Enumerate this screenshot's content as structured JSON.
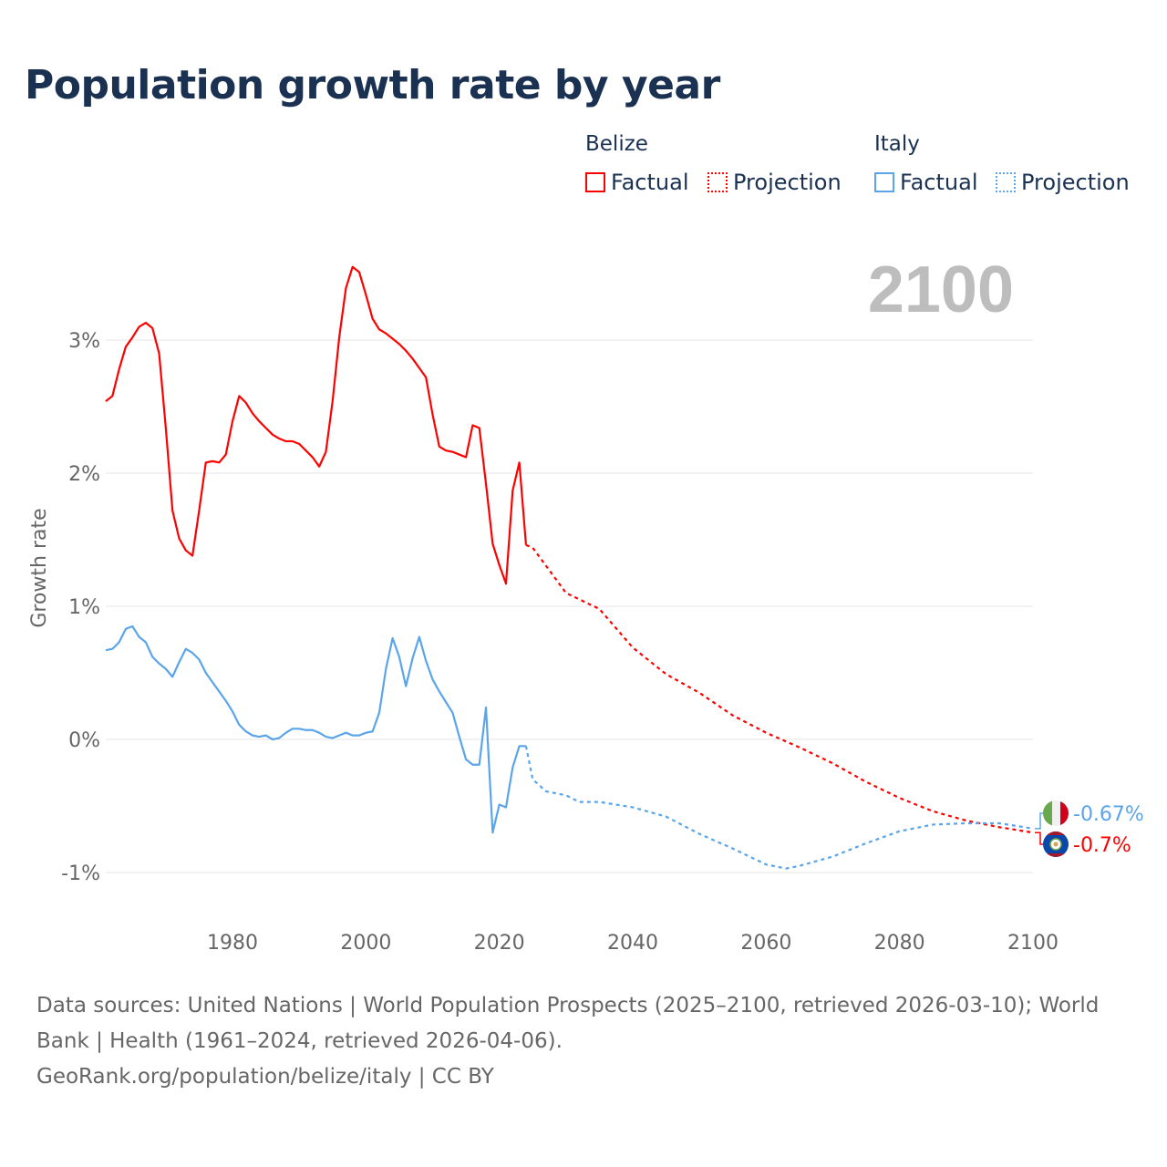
{
  "title": "Population growth rate by year",
  "legend": {
    "groups": [
      {
        "name": "Belize",
        "color": "#ff0000",
        "factual": "Factual",
        "projection": "Projection"
      },
      {
        "name": "Italy",
        "color": "#5aa5ea",
        "factual": "Factual",
        "projection": "Projection"
      }
    ]
  },
  "year_label": "2100",
  "footer": {
    "line1": "Data sources: United Nations | World Population Prospects (2025–2100, retrieved 2026-03-10); World",
    "line2": "Bank | Health (1961–2024, retrieved 2026-04-06).",
    "line3": "GeoRank.org/population/belize/italy | CC BY"
  },
  "chart_data": {
    "type": "line",
    "title": "Population growth rate by year",
    "xlabel": "",
    "ylabel": "Growth rate",
    "xlim": [
      1961,
      2100
    ],
    "ylim": [
      -1.2,
      3.6
    ],
    "x_ticks": [
      {
        "v": 1980,
        "label": "1980"
      },
      {
        "v": 2000,
        "label": "2000"
      },
      {
        "v": 2020,
        "label": "2020"
      },
      {
        "v": 2040,
        "label": "2040"
      },
      {
        "v": 2060,
        "label": "2060"
      },
      {
        "v": 2080,
        "label": "2080"
      },
      {
        "v": 2100,
        "label": "2100"
      }
    ],
    "y_ticks": [
      {
        "v": 3,
        "label": "3%"
      },
      {
        "v": 2,
        "label": "2%"
      },
      {
        "v": 1,
        "label": "1%"
      },
      {
        "v": 0,
        "label": "0%"
      },
      {
        "v": -1,
        "label": "-1%"
      }
    ],
    "grid": true,
    "legend_position": "top-right",
    "series": [
      {
        "name": "Belize",
        "color": "#ff0000",
        "end_label": "-0.7%",
        "flag": "belize-flag",
        "factual": {
          "start_year": 1961,
          "values": [
            2.54,
            2.58,
            2.78,
            2.95,
            3.02,
            3.1,
            3.13,
            3.09,
            2.9,
            2.34,
            1.72,
            1.51,
            1.42,
            1.38,
            1.72,
            2.08,
            2.09,
            2.08,
            2.14,
            2.39,
            2.58,
            2.53,
            2.45,
            2.39,
            2.34,
            2.29,
            2.26,
            2.24,
            2.24,
            2.22,
            2.17,
            2.12,
            2.05,
            2.16,
            2.54,
            3.02,
            3.39,
            3.55,
            3.51,
            3.34,
            3.16,
            3.08,
            3.05,
            3.01,
            2.97,
            2.92,
            2.86,
            2.79,
            2.72,
            2.44,
            2.2,
            2.17,
            2.16,
            2.14,
            2.12,
            2.36,
            2.34,
            1.92,
            1.47,
            1.31,
            1.17,
            1.87,
            2.08,
            1.46
          ]
        },
        "projection": {
          "x": [
            2025,
            2030,
            2035,
            2040,
            2045,
            2050,
            2055,
            2060,
            2065,
            2070,
            2075,
            2080,
            2085,
            2090,
            2095,
            2100
          ],
          "values": [
            1.44,
            1.1,
            0.98,
            0.69,
            0.49,
            0.35,
            0.18,
            0.05,
            -0.06,
            -0.18,
            -0.32,
            -0.44,
            -0.54,
            -0.61,
            -0.66,
            -0.7
          ]
        }
      },
      {
        "name": "Italy",
        "color": "#5aa5ea",
        "end_label": "-0.67%",
        "flag": "italy-flag",
        "factual": {
          "start_year": 1961,
          "values": [
            0.67,
            0.68,
            0.73,
            0.83,
            0.85,
            0.77,
            0.73,
            0.62,
            0.57,
            0.53,
            0.47,
            0.58,
            0.68,
            0.65,
            0.6,
            0.5,
            0.43,
            0.36,
            0.29,
            0.21,
            0.11,
            0.06,
            0.03,
            0.02,
            0.03,
            0.0,
            0.01,
            0.05,
            0.08,
            0.08,
            0.07,
            0.07,
            0.05,
            0.02,
            0.01,
            0.03,
            0.05,
            0.03,
            0.03,
            0.05,
            0.06,
            0.2,
            0.53,
            0.76,
            0.62,
            0.4,
            0.61,
            0.77,
            0.59,
            0.45,
            0.36,
            0.28,
            0.2,
            0.02,
            -0.15,
            -0.19,
            -0.19,
            0.24,
            -0.7,
            -0.49,
            -0.51,
            -0.21,
            -0.05,
            -0.05
          ]
        },
        "projection": {
          "x": [
            2025,
            2027,
            2030,
            2032,
            2035,
            2040,
            2045,
            2050,
            2055,
            2060,
            2063,
            2065,
            2070,
            2075,
            2080,
            2085,
            2090,
            2095,
            2100
          ],
          "values": [
            -0.3,
            -0.39,
            -0.42,
            -0.47,
            -0.47,
            -0.51,
            -0.58,
            -0.71,
            -0.82,
            -0.94,
            -0.97,
            -0.95,
            -0.88,
            -0.78,
            -0.69,
            -0.64,
            -0.63,
            -0.63,
            -0.67
          ]
        }
      }
    ]
  }
}
